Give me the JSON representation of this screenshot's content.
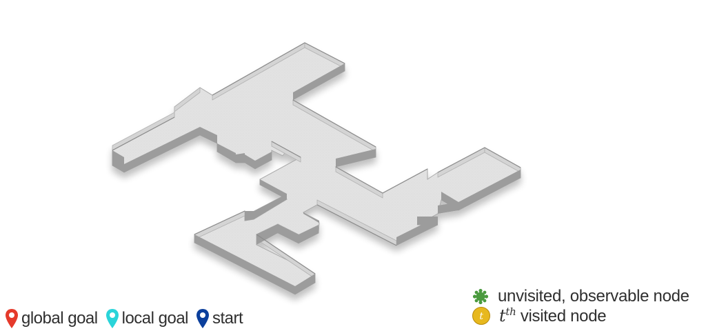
{
  "legend_left": {
    "global_goal": {
      "label": "global goal",
      "color": "#e53a2b",
      "icon": "map-pin-icon"
    },
    "local_goal": {
      "label": "local goal",
      "color": "#2ad4d9",
      "icon": "map-pin-icon"
    },
    "start": {
      "label": "start",
      "color": "#0b3f9c",
      "icon": "map-pin-icon"
    }
  },
  "legend_right": {
    "unvisited": {
      "label": "unvisited, observable node",
      "color": "#4a9a3e",
      "icon": "gear-node-icon"
    },
    "visited": {
      "marker": "t",
      "prefix": "t",
      "superscript": "th",
      "suffix": " visited node",
      "color": "#e7b81e",
      "icon": "numbered-node-icon"
    }
  },
  "floor": {
    "floor_color": "#e0e0e0",
    "wall_top_color": "#d2d2d2",
    "wall_front_color": "#9a9a9a",
    "wall_side_color": "#b8b8b8"
  }
}
